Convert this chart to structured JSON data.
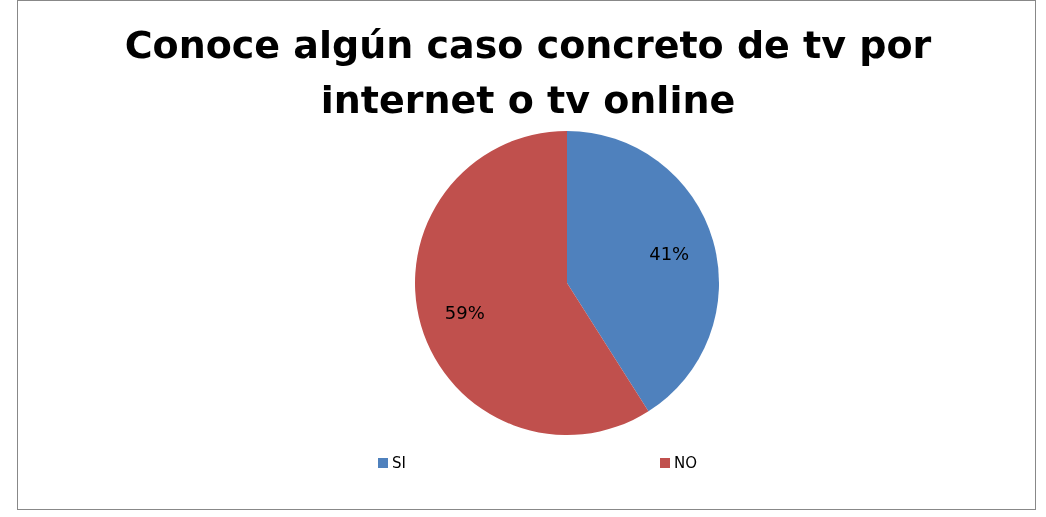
{
  "chart_data": {
    "type": "pie",
    "title": "Conoce algún caso concreto de tv por\ninternet o tv online",
    "categories": [
      "SI",
      "NO"
    ],
    "values": [
      41,
      59
    ],
    "colors": [
      "#4f81bd",
      "#c0504d"
    ],
    "value_labels": [
      "41%",
      "59%"
    ],
    "legend": "bottom"
  }
}
